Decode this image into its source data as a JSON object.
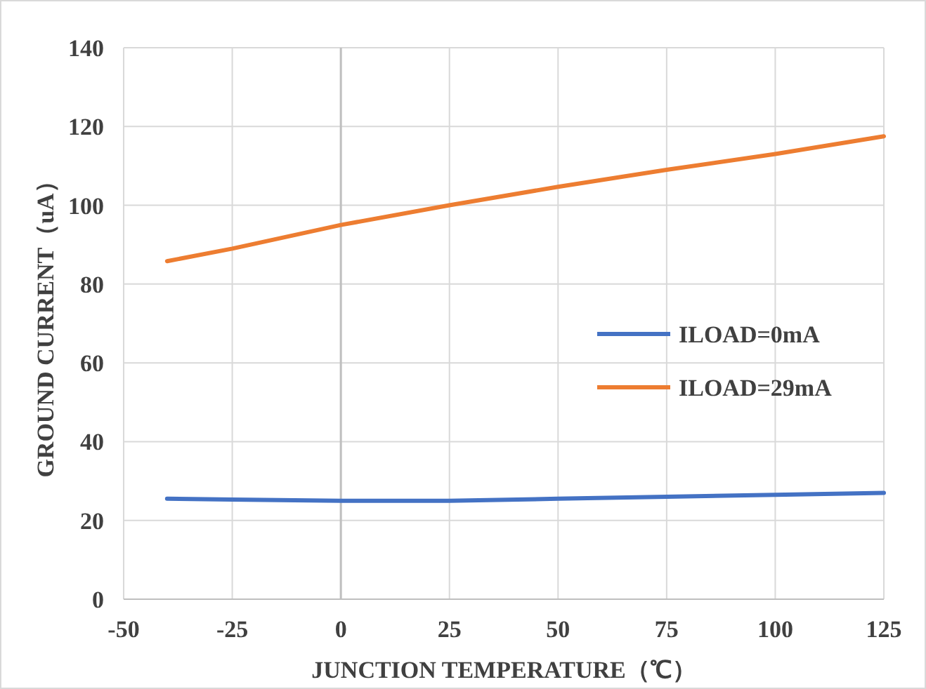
{
  "chart_data": {
    "type": "line",
    "xlabel": "JUNCTION TEMPERATURE（℃）",
    "ylabel": "GROUND CURRENT（uA）",
    "x": [
      -40,
      -25,
      0,
      25,
      50,
      75,
      100,
      125
    ],
    "series": [
      {
        "name": "ILOAD=0mA",
        "color": "#4472c4",
        "values": [
          25.5,
          25.3,
          25,
          25,
          25.5,
          26,
          26.5,
          27
        ]
      },
      {
        "name": "ILOAD=29mA",
        "color": "#ed7d31",
        "values": [
          85.8,
          89,
          95,
          100,
          104.7,
          109,
          113,
          117.5
        ]
      }
    ],
    "xlim": [
      -50,
      125
    ],
    "xticks": [
      -50,
      -25,
      0,
      25,
      50,
      75,
      100,
      125
    ],
    "ylim": [
      0,
      140
    ],
    "yticks": [
      0,
      20,
      40,
      60,
      80,
      100,
      120,
      140
    ],
    "ref_lines": [
      {
        "axis": "x",
        "value": 0,
        "color": "#bfbfbf"
      }
    ],
    "grid": true,
    "legend": "right",
    "marker": "none",
    "line_style": "solid"
  }
}
